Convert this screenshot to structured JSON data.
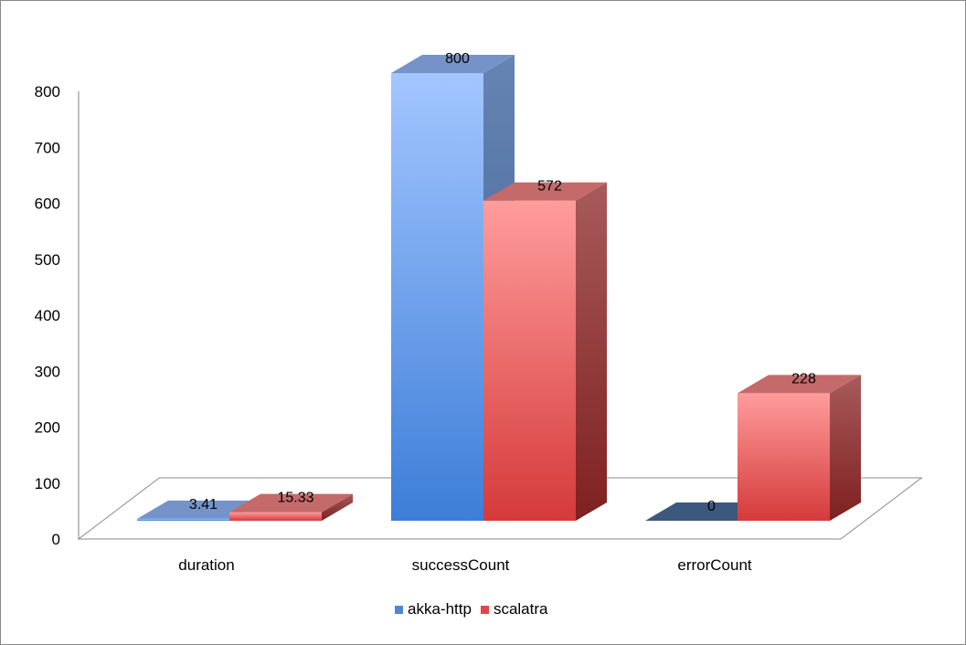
{
  "chart_data": {
    "type": "bar",
    "categories": [
      "duration",
      "successCount",
      "errorCount"
    ],
    "series": [
      {
        "name": "akka-http",
        "values": [
          3.41,
          800,
          0
        ],
        "labels": [
          "3.41",
          "800",
          "0"
        ],
        "color": "#5b8fd9"
      },
      {
        "name": "scalatra",
        "values": [
          15.33,
          572,
          228
        ],
        "labels": [
          "15.33",
          "572",
          "228"
        ],
        "color": "#e04848"
      }
    ],
    "y_ticks": [
      "0",
      "100",
      "200",
      "300",
      "400",
      "500",
      "600",
      "700",
      "800"
    ],
    "ylim": [
      0,
      800
    ],
    "grid": false,
    "legend_position": "bottom",
    "style": "3d-clustered-column"
  }
}
